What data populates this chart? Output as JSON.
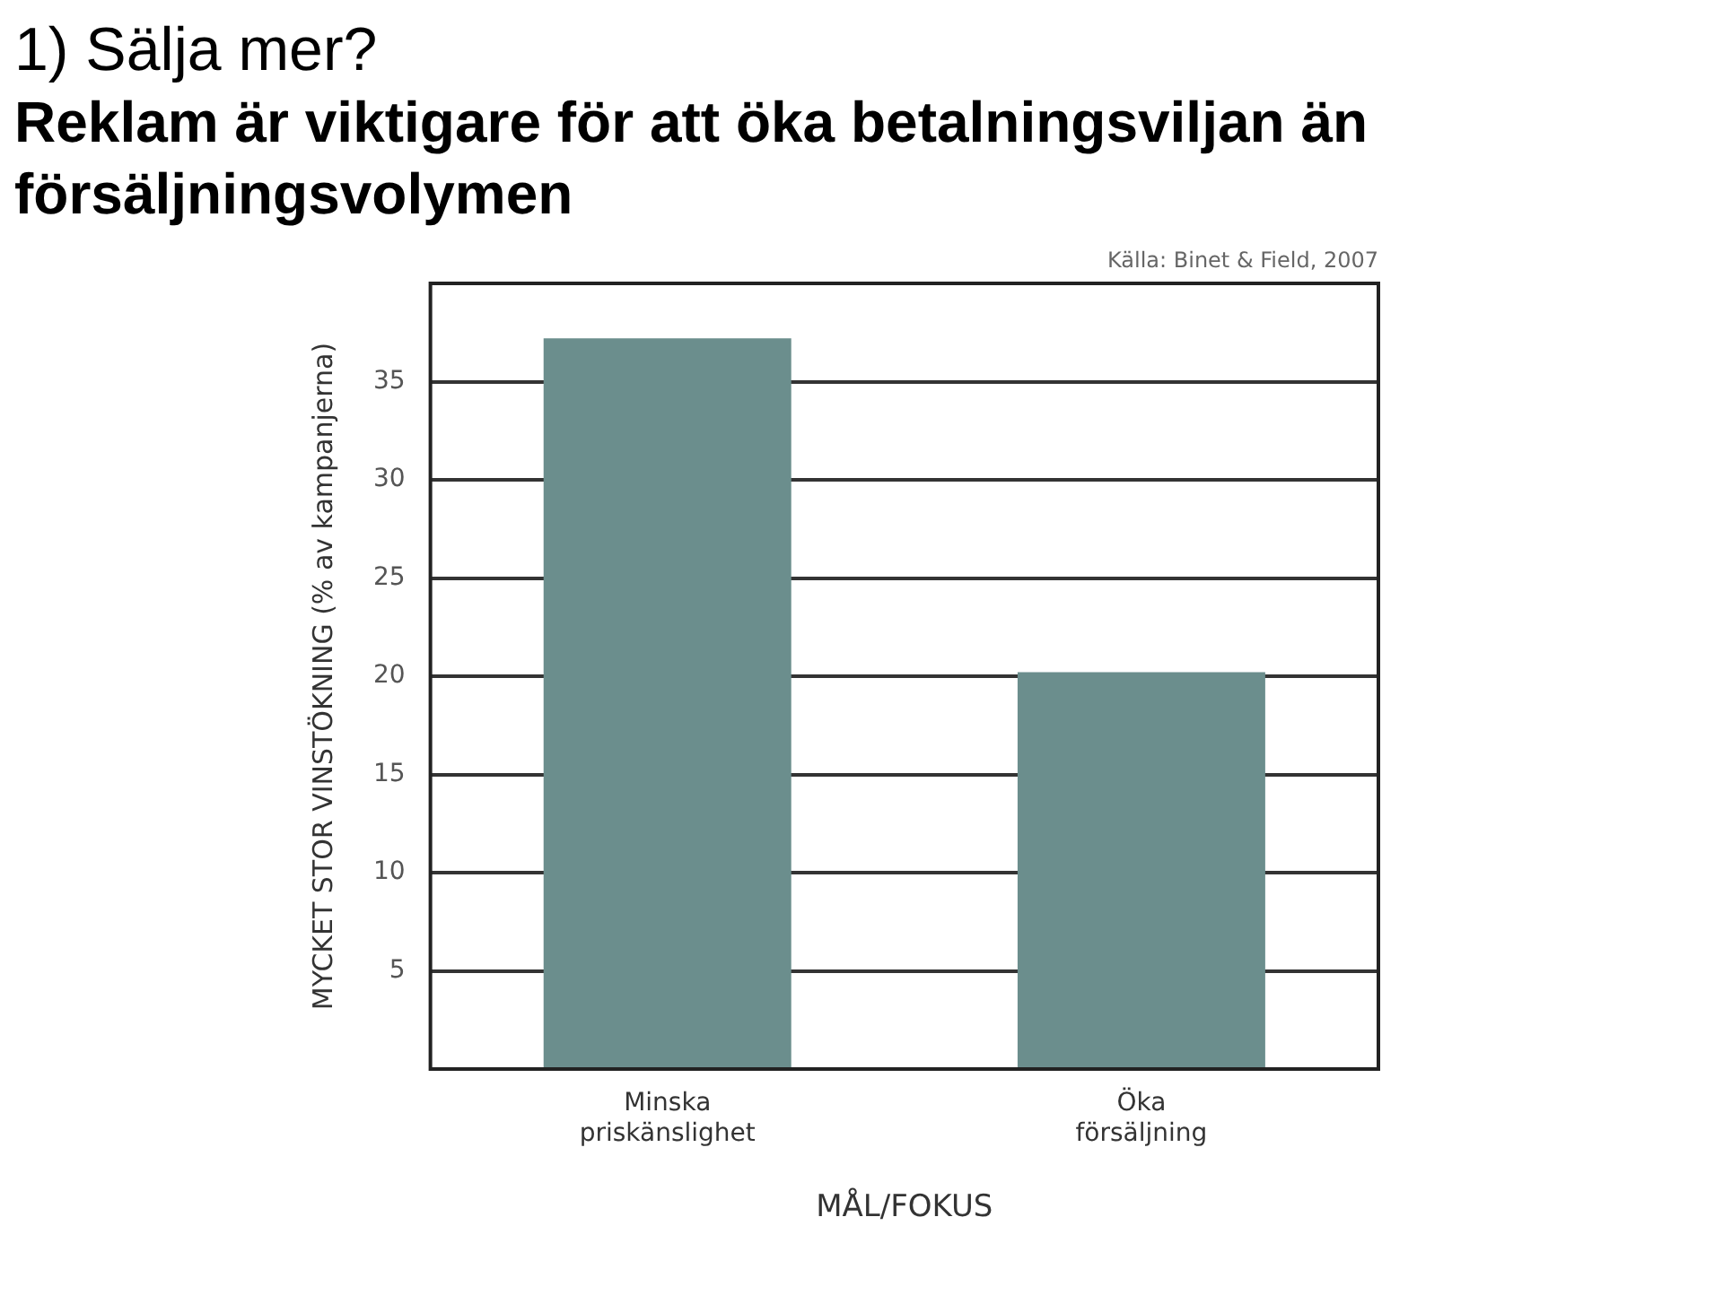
{
  "chart_data": {
    "type": "bar",
    "title": "1) Sälja mer?",
    "subtitle": "Reklam är viktigare för att öka betalningsviljan än försäljningsvolymen",
    "xlabel": "MÅL/FOKUS",
    "ylabel": "MYCKET STOR VINSTÖKNING (% av kampanjerna)",
    "categories": [
      "Minska\npriskänslighet",
      "Öka\nförsäljning"
    ],
    "values": [
      37.2,
      20.2
    ],
    "color": "#6b8e8d",
    "ylim": [
      0,
      40
    ],
    "yticks": [
      5,
      10,
      15,
      20,
      25,
      30,
      35
    ],
    "grid": "y",
    "annotations": [
      "Källa: Binet & Field, 2007"
    ]
  }
}
